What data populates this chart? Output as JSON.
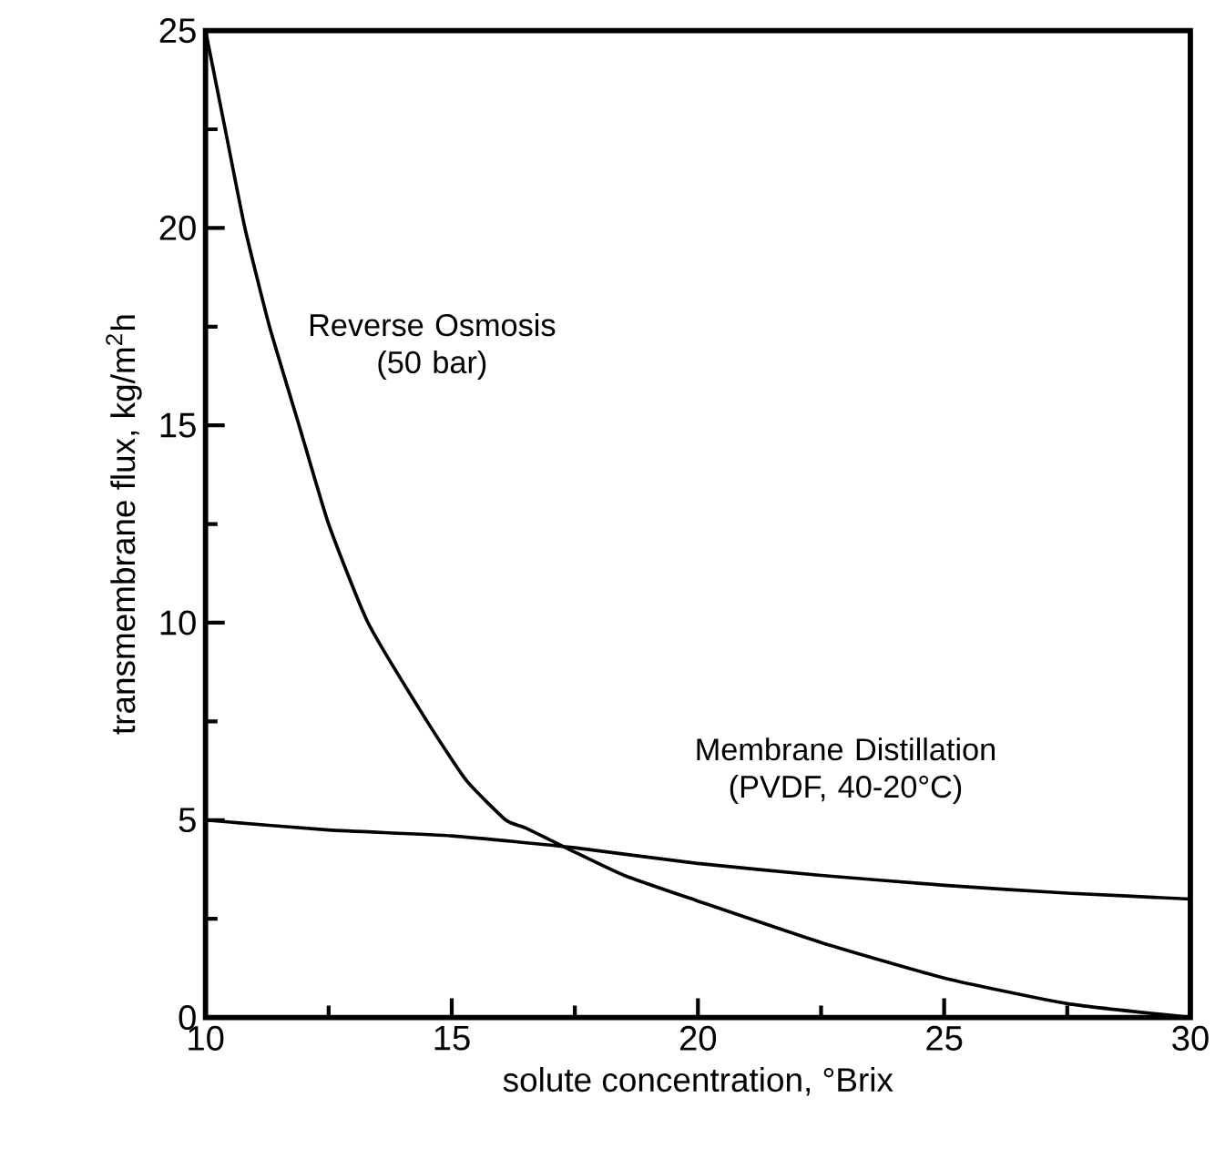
{
  "chart_data": {
    "type": "line",
    "xlabel": "solute concentration, °Brix",
    "ylabel": "transmembrane flux, kg/m$^{2}$h",
    "xlim": [
      10,
      30
    ],
    "ylim": [
      0,
      25
    ],
    "xticks": [
      10,
      {
        "value": 12.5,
        "label": null
      },
      15,
      {
        "value": 17.5,
        "label": null
      },
      20,
      {
        "value": 22.5,
        "label": null
      },
      25,
      {
        "value": 27.5,
        "label": null
      },
      30
    ],
    "yticks": [
      0,
      {
        "value": 2.5,
        "label": null
      },
      5,
      {
        "value": 7.5,
        "label": null
      },
      10,
      {
        "value": 12.5,
        "label": null
      },
      15,
      {
        "value": 17.5,
        "label": null
      },
      20,
      {
        "value": 22.5,
        "label": null
      },
      25
    ],
    "grid": false,
    "legend": false,
    "marker": "none",
    "line_style": "solid",
    "series": [
      {
        "name": "Reverse Osmosis (50 bar)",
        "color": "#000000",
        "x": [
          10,
          10.4,
          10.8,
          11.3,
          11.9,
          12.5,
          13.3,
          14.5,
          15.3,
          16.1,
          16.5,
          17.4,
          18.5,
          20,
          22.5,
          25,
          27.5,
          30
        ],
        "values": [
          25,
          22.5,
          20,
          17.5,
          15,
          12.5,
          10,
          7.5,
          6,
          5,
          4.8,
          4.25,
          3.6,
          2.95,
          1.9,
          1.0,
          0.35,
          0
        ]
      },
      {
        "name": "Membrane Distillation (PVDF, 40-20°C)",
        "color": "#000000",
        "x": [
          10,
          12.5,
          15,
          17.5,
          20,
          22.5,
          25,
          27.5,
          30
        ],
        "values": [
          5,
          4.75,
          4.6,
          4.3,
          3.9,
          3.6,
          3.35,
          3.15,
          3.0
        ]
      }
    ]
  }
}
